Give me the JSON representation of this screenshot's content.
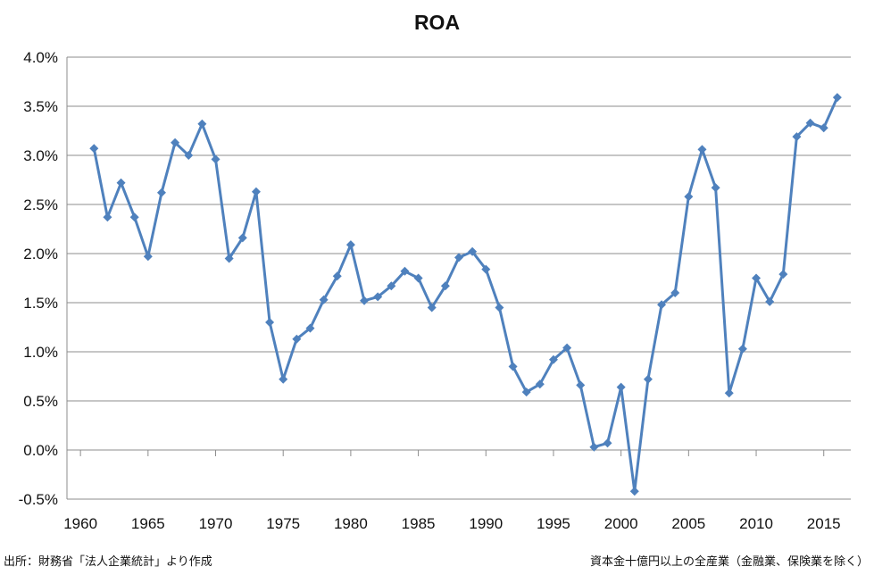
{
  "chart_data": {
    "type": "line",
    "title": "ROA",
    "xlabel": "",
    "ylabel": "",
    "xlim": [
      1959,
      2017
    ],
    "ylim": [
      -0.5,
      4.0
    ],
    "x_ticks": [
      "1960",
      "1965",
      "1970",
      "1975",
      "1980",
      "1985",
      "1990",
      "1995",
      "2000",
      "2005",
      "2010",
      "2015"
    ],
    "y_ticks": [
      "4.0%",
      "3.5%",
      "3.0%",
      "2.5%",
      "2.0%",
      "1.5%",
      "1.0%",
      "0.5%",
      "0.0%",
      "-0.5%"
    ],
    "grid": true,
    "legend": "none",
    "series": [
      {
        "color": "#4f81bd",
        "marker": "diamond",
        "x": [
          1961,
          1962,
          1963,
          1964,
          1965,
          1966,
          1967,
          1968,
          1969,
          1970,
          1971,
          1972,
          1973,
          1974,
          1975,
          1976,
          1977,
          1978,
          1979,
          1980,
          1981,
          1982,
          1983,
          1984,
          1985,
          1986,
          1987,
          1988,
          1989,
          1990,
          1991,
          1992,
          1993,
          1994,
          1995,
          1996,
          1997,
          1998,
          1999,
          2000,
          2001,
          2002,
          2003,
          2004,
          2005,
          2006,
          2007,
          2008,
          2009,
          2010,
          2011,
          2012,
          2013,
          2014,
          2015,
          2016
        ],
        "values": [
          3.07,
          2.37,
          2.72,
          2.37,
          1.97,
          2.62,
          3.13,
          3.0,
          3.32,
          2.96,
          1.95,
          2.16,
          2.63,
          1.3,
          0.72,
          1.13,
          1.24,
          1.53,
          1.77,
          2.09,
          1.52,
          1.56,
          1.67,
          1.82,
          1.75,
          1.45,
          1.67,
          1.96,
          2.02,
          1.84,
          1.45,
          0.85,
          0.59,
          0.67,
          0.92,
          1.04,
          0.66,
          0.03,
          0.07,
          0.64,
          -0.42,
          0.72,
          1.48,
          1.6,
          2.58,
          3.06,
          2.67,
          0.58,
          1.03,
          1.75,
          1.51,
          1.79,
          3.19,
          3.33,
          3.28,
          3.59
        ]
      }
    ]
  },
  "notes": {
    "source": "出所：財務省「法人企業統計」より作成",
    "scope": "資本金十億円以上の全産業（金融業、保険業を除く）"
  }
}
